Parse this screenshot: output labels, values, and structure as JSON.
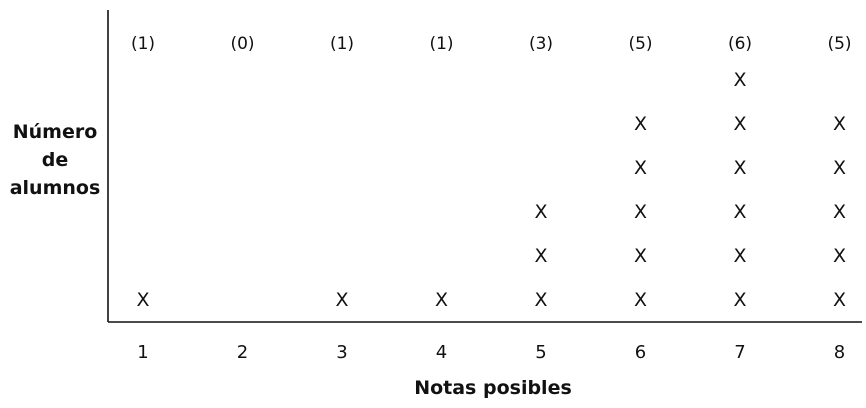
{
  "chart_data": {
    "type": "scatter",
    "subtype": "dot-plot",
    "xlabel": "Notas posibles",
    "ylabel_lines": [
      "Número",
      "de",
      "alumnos"
    ],
    "categories": [
      "1",
      "2",
      "3",
      "4",
      "5",
      "6",
      "7",
      "8"
    ],
    "values": [
      1,
      0,
      1,
      1,
      3,
      5,
      6,
      5
    ],
    "count_labels": [
      "(1)",
      "(0)",
      "(1)",
      "(1)",
      "(3)",
      "(5)",
      "(6)",
      "(5)"
    ],
    "marker": "X",
    "grid": false,
    "legend": "none"
  }
}
